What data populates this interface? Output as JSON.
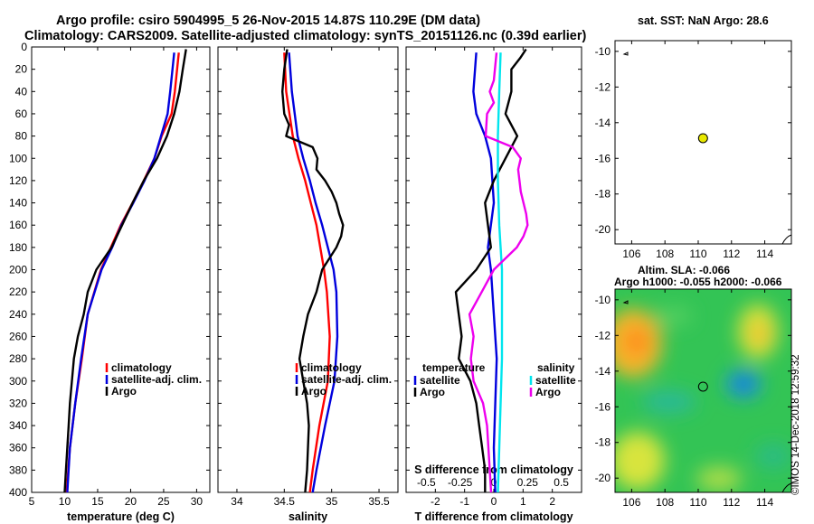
{
  "titles": {
    "line1": "Argo profile: csiro 5904995_5 26-Nov-2015 14.87S 110.29E (DM data)",
    "line2": "Climatology: CARS2009. Satellite-adjusted climatology: synTS_20151126.nc (0.39d earlier)",
    "sst": "sat. SST: NaN Argo: 28.6",
    "altim1": "Altim. SLA: -0.066",
    "altim2": "Argo h1000: -0.055 h2000: -0.066",
    "credit": "©IMOS 14-Dec-2018 12:59:32"
  },
  "colors": {
    "climatology": "#ff0000",
    "satellite": "#0000dd",
    "argo": "#000000",
    "salinity_sat": "#00e5ee",
    "salinity_argo": "#ee00ee",
    "marker": "#e8e800"
  },
  "chart_data": [
    {
      "type": "line",
      "name": "temperature",
      "xlabel": "temperature (deg C)",
      "ylabel": "",
      "xlim": [
        5,
        32
      ],
      "ylim": [
        400,
        0
      ],
      "xticks": [
        "5",
        "10",
        "15",
        "20",
        "25",
        "30"
      ],
      "xtick_values": [
        5,
        10,
        15,
        20,
        25,
        30
      ],
      "yticks": [
        "0",
        "20",
        "40",
        "60",
        "80",
        "100",
        "120",
        "140",
        "160",
        "180",
        "200",
        "220",
        "240",
        "260",
        "280",
        "300",
        "320",
        "340",
        "360",
        "380",
        "400"
      ],
      "ytick_values": [
        0,
        20,
        40,
        60,
        80,
        100,
        120,
        140,
        160,
        180,
        200,
        220,
        240,
        260,
        280,
        300,
        320,
        340,
        360,
        380,
        400
      ],
      "legend": [
        "climatology",
        "satellite-adj. clim.",
        "Argo"
      ],
      "series": [
        {
          "name": "climatology",
          "color": "#ff0000",
          "depth": [
            5,
            40,
            60,
            80,
            100,
            120,
            140,
            160,
            180,
            200,
            240,
            280,
            320,
            360,
            400
          ],
          "values": [
            27.3,
            26.7,
            26.2,
            24.7,
            23.6,
            22.0,
            20.3,
            18.5,
            17.0,
            15.5,
            13.5,
            12.6,
            11.6,
            10.8,
            10.3
          ]
        },
        {
          "name": "satellite-adj. clim.",
          "color": "#0000dd",
          "depth": [
            5,
            40,
            60,
            80,
            100,
            120,
            140,
            160,
            180,
            200,
            240,
            280,
            320,
            360,
            400
          ],
          "values": [
            26.6,
            26.0,
            25.6,
            24.6,
            23.6,
            22.1,
            20.4,
            18.6,
            17.2,
            15.6,
            13.5,
            12.5,
            11.6,
            10.8,
            10.4
          ]
        },
        {
          "name": "Argo",
          "color": "#000000",
          "depth": [
            2,
            20,
            40,
            60,
            80,
            100,
            120,
            140,
            160,
            180,
            200,
            220,
            240,
            260,
            280,
            300,
            320,
            340,
            360,
            380,
            400
          ],
          "values": [
            28.4,
            27.9,
            27.4,
            26.6,
            25.5,
            24.0,
            22.0,
            20.3,
            18.7,
            17.1,
            14.8,
            13.5,
            12.9,
            12.0,
            11.4,
            11.1,
            10.8,
            10.6,
            10.4,
            10.2,
            10.0
          ]
        }
      ]
    },
    {
      "type": "line",
      "name": "salinity",
      "xlabel": "salinity",
      "ylabel": "",
      "xlim": [
        33.8,
        35.7
      ],
      "ylim": [
        400,
        0
      ],
      "xticks": [
        "34",
        "34.5",
        "35",
        "35.5"
      ],
      "xtick_values": [
        34,
        34.5,
        35,
        35.5
      ],
      "legend": [
        "climatology",
        "satellite-adj. clim.",
        "Argo"
      ],
      "series": [
        {
          "name": "climatology",
          "color": "#ff0000",
          "depth": [
            5,
            40,
            80,
            100,
            120,
            140,
            160,
            180,
            200,
            220,
            260,
            300,
            340,
            380,
            400
          ],
          "values": [
            34.5,
            34.52,
            34.59,
            34.65,
            34.72,
            34.78,
            34.84,
            34.88,
            34.92,
            34.95,
            34.98,
            34.96,
            34.87,
            34.8,
            34.77
          ]
        },
        {
          "name": "satellite-adj. clim.",
          "color": "#0000dd",
          "depth": [
            5,
            40,
            80,
            100,
            120,
            140,
            160,
            180,
            200,
            220,
            260,
            300,
            340,
            380,
            400
          ],
          "values": [
            34.55,
            34.58,
            34.64,
            34.7,
            34.77,
            34.83,
            34.9,
            34.96,
            35.02,
            35.05,
            35.06,
            35.03,
            34.93,
            34.84,
            34.8
          ]
        },
        {
          "name": "Argo",
          "color": "#000000",
          "depth": [
            2,
            20,
            40,
            60,
            70,
            80,
            90,
            100,
            110,
            120,
            130,
            140,
            150,
            160,
            170,
            180,
            200,
            220,
            240,
            260,
            280,
            300,
            320,
            340,
            360,
            380,
            400
          ],
          "values": [
            34.53,
            34.5,
            34.48,
            34.5,
            34.55,
            34.52,
            34.8,
            34.85,
            34.84,
            34.93,
            35.0,
            35.05,
            35.08,
            35.12,
            35.1,
            35.05,
            34.9,
            34.84,
            34.75,
            34.7,
            34.66,
            34.7,
            34.74,
            34.76,
            34.75,
            34.74,
            34.72
          ]
        }
      ]
    },
    {
      "type": "line",
      "name": "difference",
      "xlabel": "T difference from climatology",
      "top_xlabel": "S difference from climatology",
      "xlim": [
        -3.0,
        3.0
      ],
      "ylim": [
        400,
        0
      ],
      "xticks": [
        "-2",
        "-1",
        "0",
        "1",
        "2"
      ],
      "xtick_values": [
        -2,
        -1,
        0,
        1,
        2
      ],
      "top_xticks": [
        "-0.5",
        "-0.25",
        "0",
        "0.25",
        "0.5"
      ],
      "top_xtick_values": [
        -0.5,
        -0.25,
        0,
        0.25,
        0.5
      ],
      "legend_temperature_title": "temperature",
      "legend_salinity_title": "salinity",
      "legend": [
        "satellite",
        "Argo"
      ],
      "series": [
        {
          "name": "temperature satellite",
          "color": "#0000dd",
          "depth": [
            5,
            40,
            60,
            80,
            100,
            140,
            180,
            200,
            240,
            280,
            320,
            360,
            400
          ],
          "values": [
            -0.6,
            -0.7,
            -0.6,
            -0.3,
            -0.1,
            0.0,
            -0.2,
            -0.1,
            0.0,
            0.1,
            0.05,
            0.0,
            0.05
          ]
        },
        {
          "name": "temperature Argo",
          "color": "#000000",
          "depth": [
            2,
            10,
            20,
            40,
            60,
            80,
            100,
            120,
            140,
            160,
            180,
            200,
            220,
            240,
            260,
            280,
            300,
            320,
            340,
            360,
            380,
            400
          ],
          "values": [
            1.1,
            0.9,
            0.6,
            0.6,
            0.4,
            0.8,
            0.4,
            0.0,
            -0.3,
            -0.2,
            -0.1,
            -0.6,
            -1.3,
            -1.2,
            -1.1,
            -1.2,
            -0.8,
            -0.6,
            -0.5,
            -0.4,
            -0.3,
            -0.3
          ]
        },
        {
          "name": "salinity satellite",
          "color": "#00e5ee",
          "depth": [
            5,
            40,
            80,
            120,
            160,
            200,
            240,
            280,
            320,
            360,
            400
          ],
          "values": [
            0.05,
            0.04,
            0.03,
            0.03,
            0.04,
            0.06,
            0.06,
            0.06,
            0.05,
            0.04,
            0.03
          ]
        },
        {
          "name": "salinity Argo",
          "color": "#ee00ee",
          "depth": [
            5,
            30,
            40,
            50,
            60,
            80,
            90,
            100,
            110,
            130,
            150,
            160,
            170,
            180,
            200,
            220,
            240,
            260,
            280,
            300,
            320,
            340,
            360,
            380,
            400
          ],
          "values": [
            0.02,
            0.0,
            -0.03,
            0.0,
            -0.05,
            -0.06,
            0.14,
            0.2,
            0.18,
            0.2,
            0.24,
            0.25,
            0.22,
            0.17,
            0.0,
            -0.09,
            -0.18,
            -0.15,
            -0.17,
            -0.15,
            -0.08,
            -0.05,
            -0.04,
            -0.03,
            -0.02
          ]
        }
      ]
    },
    {
      "type": "scatter",
      "name": "sst-map",
      "title": "sat. SST: NaN Argo: 28.6",
      "xlim": [
        105,
        115.6
      ],
      "ylim": [
        -20.8,
        -9.4
      ],
      "xticks": [
        "106",
        "108",
        "110",
        "112",
        "114"
      ],
      "xtick_values": [
        106,
        108,
        110,
        112,
        114
      ],
      "yticks": [
        "-10",
        "-12",
        "-14",
        "-16",
        "-18",
        "-20"
      ],
      "ytick_values": [
        -10,
        -12,
        -14,
        -16,
        -18,
        -20
      ],
      "points": [
        {
          "lon": 110.29,
          "lat": -14.87
        }
      ]
    },
    {
      "type": "heatmap",
      "name": "sla-map",
      "title": "Altim. SLA: -0.066",
      "xlim": [
        105,
        115.6
      ],
      "ylim": [
        -20.8,
        -9.4
      ],
      "xticks": [
        "106",
        "108",
        "110",
        "112",
        "114"
      ],
      "xtick_values": [
        106,
        108,
        110,
        112,
        114
      ],
      "yticks": [
        "-10",
        "-12",
        "-14",
        "-16",
        "-18",
        "-20"
      ],
      "ytick_values": [
        -10,
        -12,
        -14,
        -16,
        -18,
        -20
      ],
      "points": [
        {
          "lon": 110.29,
          "lat": -14.87
        }
      ]
    }
  ]
}
